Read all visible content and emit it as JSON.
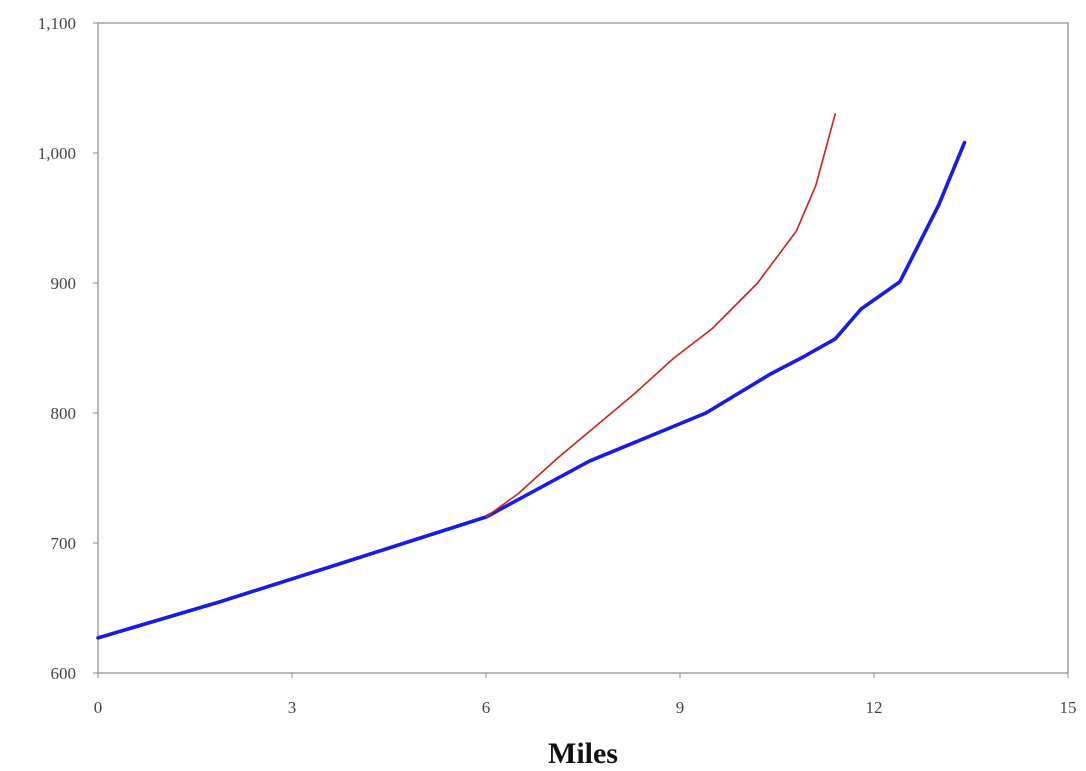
{
  "chart_data": {
    "type": "line",
    "title": "",
    "xlabel": "Miles",
    "ylabel": "",
    "xlim": [
      0,
      15
    ],
    "ylim": [
      600,
      1100
    ],
    "x_ticks": [
      0,
      3,
      6,
      9,
      12,
      15
    ],
    "x_tick_labels": [
      "0",
      "3",
      "6",
      "9",
      "12",
      "15"
    ],
    "y_ticks": [
      600,
      700,
      800,
      900,
      1000,
      1100
    ],
    "y_tick_labels": [
      "600",
      "700",
      "800",
      "900",
      "1,000",
      "1,100"
    ],
    "grid": false,
    "legend": "none",
    "series": [
      {
        "color": "#1a1ae6",
        "x": [
          0,
          1.9,
          3.8,
          6.0,
          7.6,
          9.4,
          10.4,
          10.9,
          11.4,
          11.8,
          12.4,
          13.0,
          13.4
        ],
        "y": [
          627,
          655,
          685,
          720,
          763,
          800,
          830,
          843,
          857,
          880,
          901,
          960,
          1008
        ]
      },
      {
        "color": "#cc2222",
        "x": [
          6.0,
          6.5,
          7.1,
          7.7,
          8.3,
          8.9,
          9.5,
          10.2,
          10.8,
          11.1,
          11.4
        ],
        "y": [
          720,
          738,
          765,
          790,
          815,
          842,
          865,
          900,
          940,
          975,
          1030
        ]
      }
    ]
  }
}
